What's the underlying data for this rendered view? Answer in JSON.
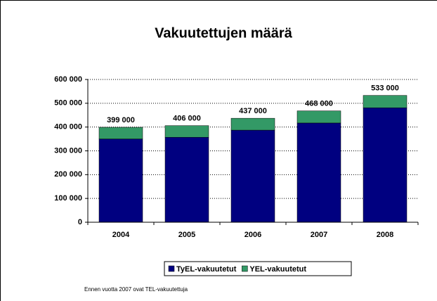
{
  "chart_data": {
    "type": "stacked_bar",
    "title": "Vakuutettujen määrä",
    "categories": [
      "2004",
      "2005",
      "2006",
      "2007",
      "2008"
    ],
    "series": [
      {
        "name": "TyEL-vakuutetut",
        "color": "#000080",
        "values": [
          350000,
          357000,
          387000,
          417000,
          481000
        ]
      },
      {
        "name": "YEL-vakuutetut",
        "color": "#339966",
        "values": [
          49000,
          49000,
          50000,
          51000,
          52000
        ]
      }
    ],
    "total_labels": [
      "399 000",
      "406 000",
      "437 000",
      "468 000",
      "533 000"
    ],
    "ylim": [
      0,
      600000
    ],
    "yticks": [
      0,
      {
        "value": 100000,
        "label": "100 000"
      },
      {
        "value": 200000,
        "label": "200 000"
      },
      {
        "value": 300000,
        "label": "300 000"
      },
      {
        "value": 400000,
        "label": "400 000"
      },
      {
        "value": 500000,
        "label": "500 000"
      },
      {
        "value": 600000,
        "label": "600 000"
      }
    ],
    "grid": true,
    "legend": "bottom",
    "footnote": "Ennen vuotta 2007 ovat TEL-vakuutettuja"
  }
}
